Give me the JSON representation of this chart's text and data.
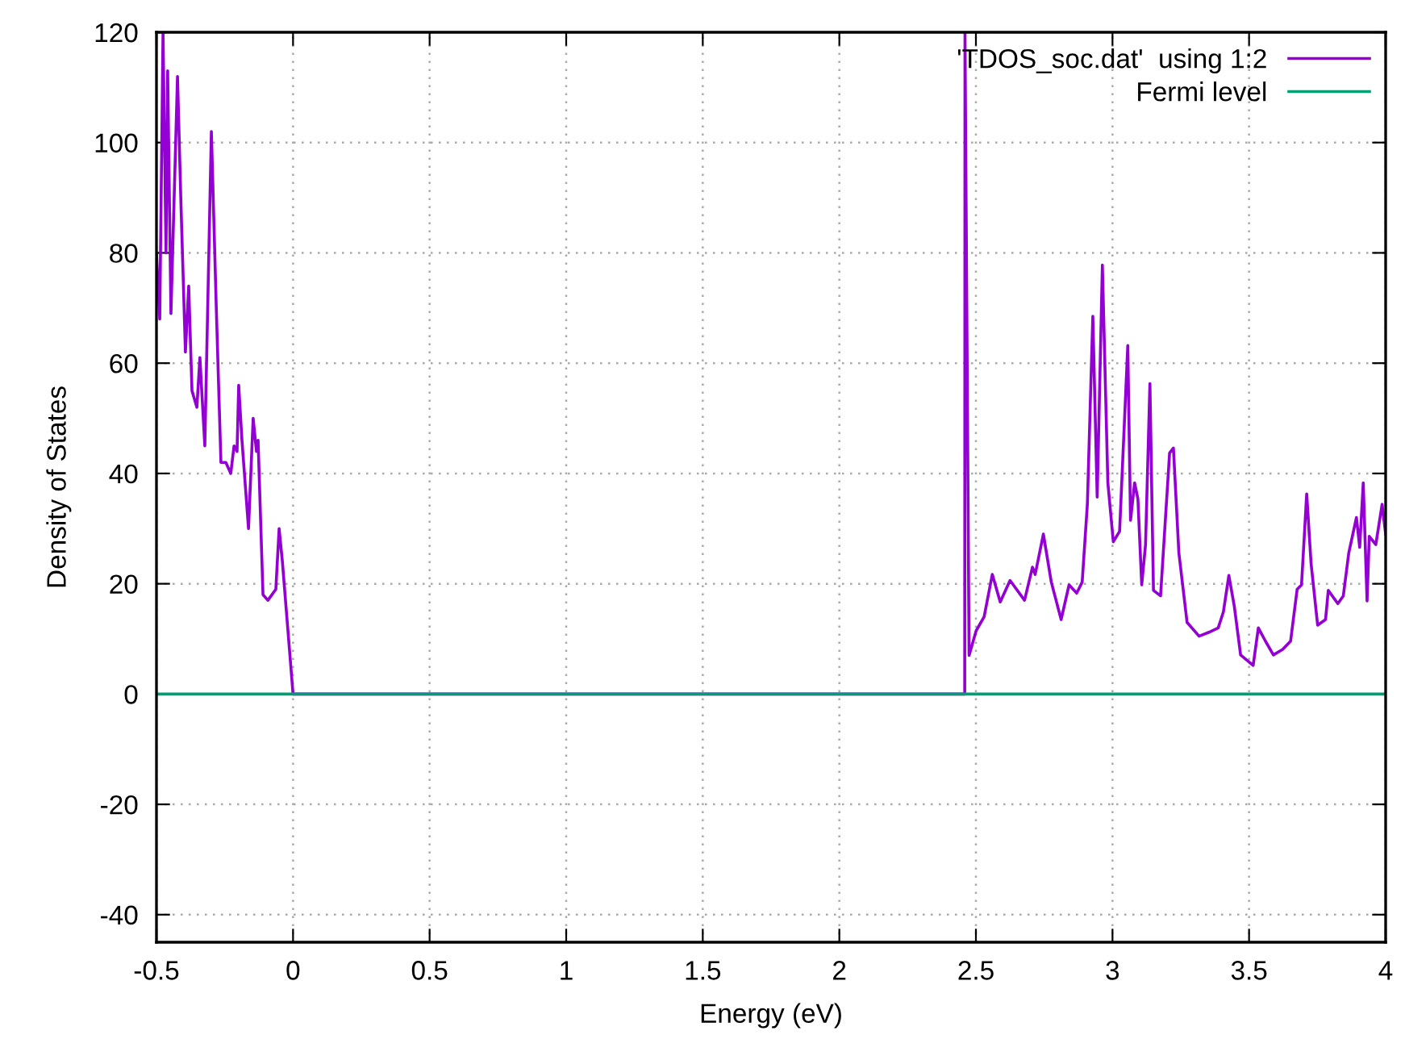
{
  "chart_data": {
    "type": "line",
    "xlabel": "Energy (eV)",
    "ylabel": "Density of States",
    "xlim": [
      -0.5,
      4
    ],
    "ylim": [
      -45,
      120
    ],
    "xticks": [
      -0.5,
      0,
      0.5,
      1,
      1.5,
      2,
      2.5,
      3,
      3.5,
      4
    ],
    "yticks": [
      -40,
      -20,
      0,
      20,
      40,
      60,
      80,
      100,
      120
    ],
    "grid": true,
    "legend": "top right",
    "line_style": "solid",
    "marker": "none",
    "series": [
      {
        "name": "'TDOS_soc.dat'  using 1:2",
        "color": "#9400d3",
        "x": [
          -0.5,
          -0.488,
          -0.476,
          -0.465,
          -0.459,
          -0.447,
          -0.423,
          -0.411,
          -0.394,
          -0.382,
          -0.37,
          -0.352,
          -0.341,
          -0.323,
          -0.299,
          -0.281,
          -0.264,
          -0.246,
          -0.228,
          -0.216,
          -0.205,
          -0.199,
          -0.187,
          -0.163,
          -0.146,
          -0.134,
          -0.128,
          -0.11,
          -0.092,
          -0.063,
          -0.051,
          -0.039,
          0,
          2.459,
          2.46,
          2.475,
          2.501,
          2.53,
          2.56,
          2.589,
          2.625,
          2.678,
          2.707,
          2.717,
          2.747,
          2.776,
          2.812,
          2.841,
          2.869,
          2.889,
          2.908,
          2.928,
          2.944,
          2.963,
          2.983,
          3.003,
          3.026,
          3.056,
          3.066,
          3.081,
          3.093,
          3.107,
          3.121,
          3.137,
          3.15,
          3.176,
          3.209,
          3.223,
          3.243,
          3.273,
          3.317,
          3.353,
          3.387,
          3.406,
          3.426,
          3.446,
          3.469,
          3.515,
          3.534,
          3.56,
          3.589,
          3.623,
          3.652,
          3.676,
          3.692,
          3.711,
          3.727,
          3.751,
          3.78,
          3.79,
          3.825,
          3.845,
          3.865,
          3.893,
          3.905,
          3.918,
          3.932,
          3.94,
          3.964,
          3.987,
          4.0
        ],
        "values": [
          80,
          68,
          120,
          80,
          113,
          69,
          112,
          90,
          62,
          74,
          55,
          52,
          61,
          45,
          102,
          70,
          42,
          42,
          40,
          45,
          44,
          56,
          46,
          30,
          50,
          44,
          46,
          18,
          17,
          19,
          30,
          24,
          0,
          0,
          120,
          7,
          11.5,
          14,
          21.7,
          16.7,
          20.6,
          17,
          23,
          21.7,
          29,
          20.3,
          13.5,
          19.8,
          18.3,
          20.3,
          34.4,
          68.5,
          35.7,
          77.8,
          38.3,
          27.6,
          29.5,
          63.2,
          31.5,
          38.3,
          35.4,
          19.8,
          27.1,
          56.3,
          18.8,
          17.8,
          43.7,
          44.6,
          25.6,
          13,
          10.5,
          11.2,
          12,
          14.9,
          21.5,
          15.9,
          7.1,
          5.2,
          12,
          9.6,
          7.1,
          8.1,
          9.6,
          19,
          19.8,
          36.3,
          23.7,
          12.5,
          13.5,
          18.8,
          16.4,
          17.8,
          25.6,
          32,
          26.6,
          38.3,
          16.9,
          28.6,
          27.1,
          34.4,
          29
        ]
      },
      {
        "name": "Fermi level",
        "color": "#009e73",
        "x": [
          -0.5,
          4
        ],
        "values": [
          0,
          0
        ]
      }
    ]
  }
}
